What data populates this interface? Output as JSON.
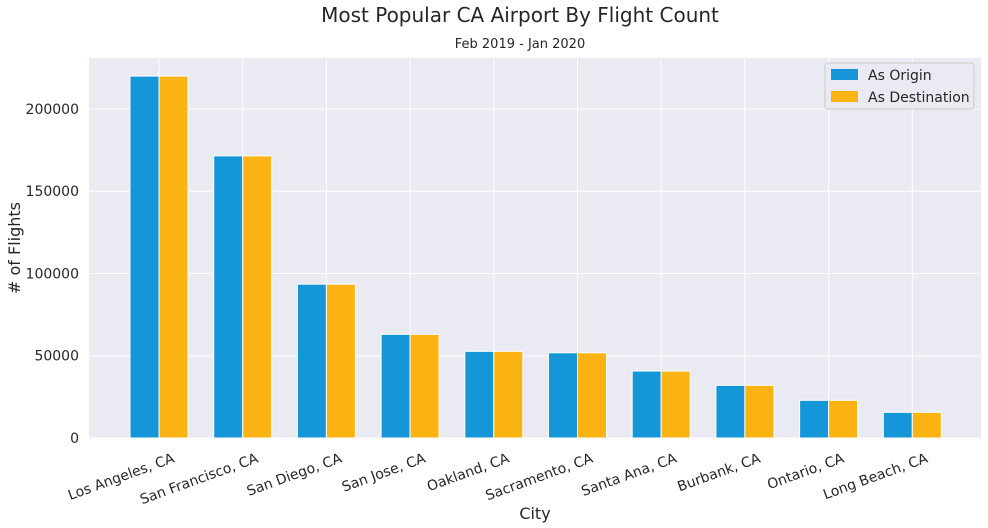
{
  "chart_data": {
    "type": "bar",
    "title": "Most Popular CA Airport By Flight Count",
    "subtitle": "Feb 2019 - Jan 2020",
    "xlabel": "City",
    "ylabel": "# of Flights",
    "categories": [
      "Los Angeles, CA",
      "San Francisco, CA",
      "San Diego, CA",
      "San Jose, CA",
      "Oakland, CA",
      "Sacramento, CA",
      "Santa Ana, CA",
      "Burbank, CA",
      "Ontario, CA",
      "Long Beach, CA"
    ],
    "series": [
      {
        "name": "As Origin",
        "color": "#1496d8",
        "values": [
          220000,
          171500,
          93500,
          63000,
          52700,
          51800,
          40700,
          32000,
          22900,
          15600
        ]
      },
      {
        "name": "As Destination",
        "color": "#fbb314",
        "values": [
          220000,
          171500,
          93500,
          63000,
          52700,
          51800,
          40700,
          32000,
          22900,
          15600
        ]
      }
    ],
    "ylim": [
      0,
      231000
    ],
    "yticks": [
      0,
      50000,
      100000,
      150000,
      200000
    ],
    "ytick_labels": [
      "0",
      "50000",
      "100000",
      "150000",
      "200000"
    ],
    "grid": true,
    "legend": "top-right",
    "background": "#eaeaf2"
  }
}
